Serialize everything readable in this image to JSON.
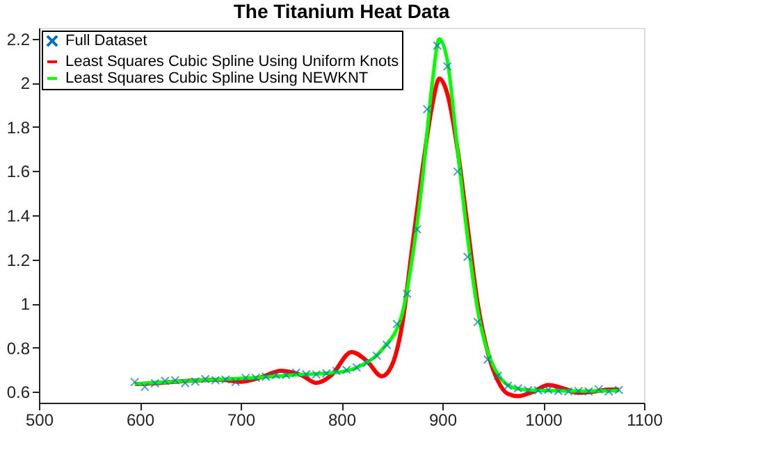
{
  "chart_data": {
    "type": "line",
    "title": "The Titanium Heat Data",
    "xlim": [
      500,
      1100
    ],
    "ylim": [
      0.55,
      2.25
    ],
    "xticks": [
      500,
      600,
      700,
      800,
      900,
      1000,
      1100
    ],
    "yticks": [
      0.6,
      0.8,
      1,
      1.2,
      1.4,
      1.6,
      1.8,
      2,
      2.2
    ],
    "legend": "top left",
    "grid": false,
    "series": [
      {
        "name": "Full Dataset",
        "type": "scatter",
        "marker": "cross",
        "color": "#0072bd",
        "x": [
          595,
          605,
          615,
          625,
          635,
          645,
          655,
          665,
          675,
          685,
          695,
          705,
          715,
          725,
          735,
          745,
          755,
          765,
          775,
          785,
          795,
          805,
          815,
          825,
          835,
          845,
          855,
          865,
          875,
          885,
          895,
          905,
          915,
          925,
          935,
          945,
          955,
          965,
          975,
          985,
          995,
          1005,
          1015,
          1025,
          1035,
          1045,
          1055,
          1065,
          1075
        ],
        "values": [
          0.644,
          0.622,
          0.638,
          0.649,
          0.652,
          0.639,
          0.646,
          0.657,
          0.652,
          0.655,
          0.644,
          0.663,
          0.663,
          0.668,
          0.676,
          0.676,
          0.686,
          0.679,
          0.678,
          0.683,
          0.694,
          0.699,
          0.71,
          0.73,
          0.763,
          0.812,
          0.907,
          1.044,
          1.336,
          1.881,
          2.169,
          2.075,
          1.598,
          1.211,
          0.916,
          0.746,
          0.672,
          0.627,
          0.615,
          0.607,
          0.606,
          0.609,
          0.603,
          0.601,
          0.603,
          0.601,
          0.611,
          0.601,
          0.608
        ]
      },
      {
        "name": "Least Squares Cubic Spline Using Uniform Knots",
        "color": "#ff0000",
        "x": [
          595,
          620,
          650,
          680,
          700,
          720,
          740,
          760,
          775,
          790,
          810,
          825,
          840,
          850,
          860,
          870,
          880,
          890,
          897,
          905,
          915,
          925,
          935,
          945,
          955,
          965,
          975,
          990,
          1005,
          1020,
          1035,
          1050,
          1065,
          1075
        ],
        "values": [
          0.635,
          0.64,
          0.65,
          0.655,
          0.645,
          0.665,
          0.695,
          0.675,
          0.64,
          0.675,
          0.78,
          0.74,
          0.67,
          0.72,
          0.9,
          1.25,
          1.6,
          1.9,
          2.02,
          1.95,
          1.7,
          1.35,
          1.0,
          0.78,
          0.65,
          0.59,
          0.58,
          0.6,
          0.63,
          0.615,
          0.595,
          0.6,
          0.61,
          0.61
        ]
      },
      {
        "name": "Least Squares Cubic Spline Using NEWKNT",
        "color": "#00ff00",
        "x": [
          595,
          650,
          700,
          750,
          800,
          820,
          840,
          860,
          870,
          880,
          890,
          897,
          905,
          915,
          925,
          935,
          945,
          955,
          965,
          980,
          1000,
          1040,
          1075
        ],
        "values": [
          0.635,
          0.65,
          0.66,
          0.675,
          0.69,
          0.72,
          0.79,
          0.95,
          1.2,
          1.55,
          2.0,
          2.2,
          2.1,
          1.7,
          1.3,
          0.97,
          0.78,
          0.68,
          0.63,
          0.61,
          0.605,
          0.603,
          0.605
        ]
      }
    ]
  }
}
